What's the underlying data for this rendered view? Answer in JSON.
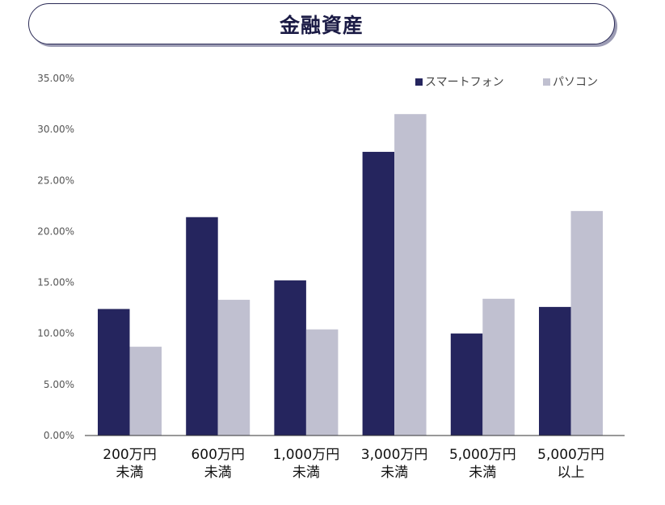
{
  "chart_data": {
    "type": "bar",
    "title": "金融資産",
    "categories": [
      [
        "200万円",
        "未満"
      ],
      [
        "600万円",
        "未満"
      ],
      [
        "1,000万円",
        "未満"
      ],
      [
        "3,000万円",
        "未満"
      ],
      [
        "5,000万円",
        "未満"
      ],
      [
        "5,000万円",
        "以上"
      ]
    ],
    "series": [
      {
        "name": "スマートフォン",
        "color": "#25255e",
        "values": [
          12.4,
          21.4,
          15.2,
          27.8,
          10.0,
          12.6
        ]
      },
      {
        "name": "パソコン",
        "color": "#c0c0d0",
        "values": [
          8.7,
          13.3,
          10.4,
          31.5,
          13.4,
          22.0
        ]
      }
    ],
    "yticks": [
      "0.00%",
      "5.00%",
      "10.00%",
      "15.00%",
      "20.00%",
      "25.00%",
      "30.00%",
      "35.00%"
    ],
    "ylim": [
      0,
      35
    ],
    "ystep": 5,
    "xlabel": "",
    "ylabel": "",
    "grid": false,
    "legend_position": "top-right"
  }
}
